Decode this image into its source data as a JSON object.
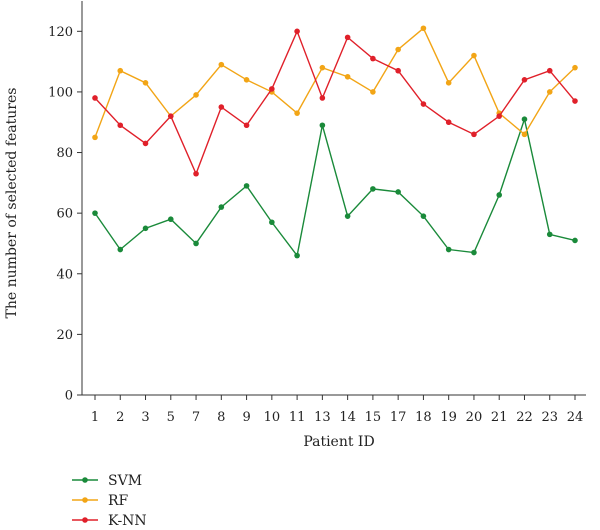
{
  "chart_data": {
    "type": "line",
    "xlabel": "Patient ID",
    "ylabel": "The number of selected features",
    "categories": [
      "1",
      "2",
      "3",
      "5",
      "7",
      "8",
      "9",
      "10",
      "11",
      "13",
      "14",
      "15",
      "17",
      "18",
      "19",
      "20",
      "21",
      "22",
      "23",
      "24"
    ],
    "ylim": [
      0,
      130
    ],
    "yticks": [
      0,
      20,
      40,
      60,
      80,
      100,
      120
    ],
    "grid": false,
    "legend_position": "bottom-left",
    "series": [
      {
        "name": "SVM",
        "color": "#1a8a3a",
        "values": [
          60,
          48,
          55,
          58,
          50,
          62,
          69,
          57,
          46,
          89,
          59,
          68,
          67,
          59,
          48,
          47,
          66,
          91,
          53,
          51
        ]
      },
      {
        "name": "RF",
        "color": "#f2a516",
        "values": [
          85,
          107,
          103,
          92,
          99,
          109,
          104,
          100,
          93,
          108,
          105,
          100,
          114,
          121,
          103,
          112,
          93,
          86,
          100,
          108
        ]
      },
      {
        "name": "K-NN",
        "color": "#e0202a",
        "values": [
          98,
          89,
          83,
          92,
          73,
          95,
          89,
          101,
          120,
          98,
          118,
          111,
          107,
          96,
          90,
          86,
          92,
          104,
          107,
          97
        ]
      }
    ]
  }
}
